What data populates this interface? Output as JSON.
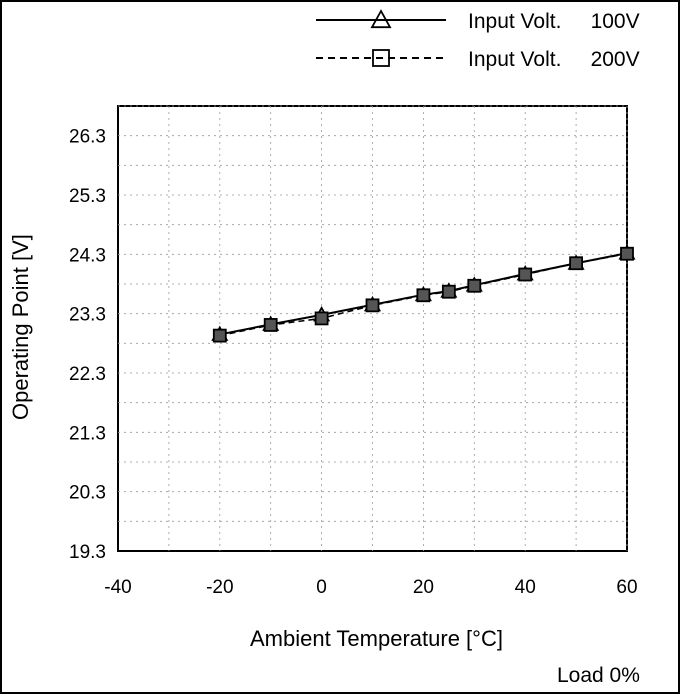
{
  "chart_data": {
    "type": "line",
    "title": "",
    "xlabel": "Ambient Temperature  [°C]",
    "ylabel": "Operating Point  [V]",
    "xlim": [
      -40,
      60
    ],
    "ylim": [
      19.3,
      26.8
    ],
    "x_ticks": [
      -40,
      -20,
      0,
      20,
      40,
      60
    ],
    "y_ticks": [
      19.3,
      20.3,
      21.3,
      22.3,
      23.3,
      24.3,
      25.3,
      26.3
    ],
    "x_tick_labels": [
      "-40",
      "-20",
      "0",
      "20",
      "40",
      "60"
    ],
    "y_tick_labels": [
      "19.3",
      "20.3",
      "21.3",
      "22.3",
      "23.3",
      "24.3",
      "25.3",
      "26.3"
    ],
    "grid": true,
    "legend_position": "top-right",
    "series": [
      {
        "name": "Input Volt.     100V",
        "marker": "triangle",
        "line": "solid",
        "x": [
          -20,
          -10,
          0,
          10,
          20,
          25,
          30,
          40,
          50,
          60
        ],
        "y": [
          22.95,
          23.12,
          23.28,
          23.45,
          23.62,
          23.68,
          23.78,
          23.97,
          24.15,
          24.32
        ]
      },
      {
        "name": "Input Volt.     200V",
        "marker": "square",
        "line": "dashed",
        "x": [
          -20,
          -10,
          0,
          10,
          20,
          25,
          30,
          40,
          50,
          60
        ],
        "y": [
          22.93,
          23.11,
          23.22,
          23.44,
          23.61,
          23.67,
          23.77,
          23.96,
          24.15,
          24.31
        ]
      }
    ],
    "note": "Load 0%"
  }
}
